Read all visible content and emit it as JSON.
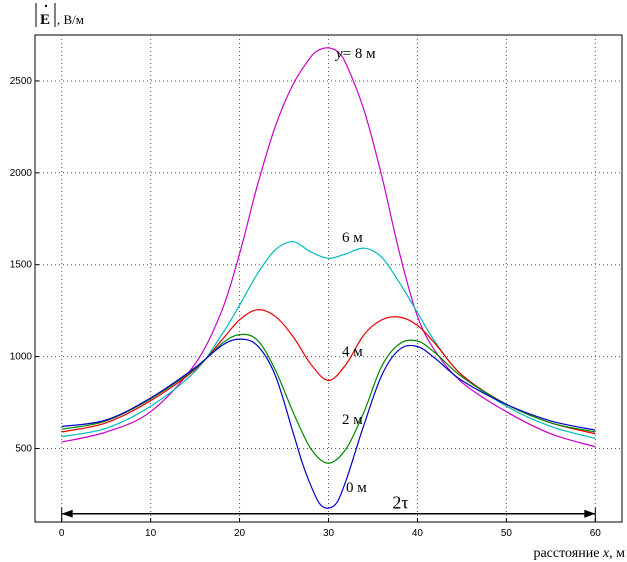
{
  "chart_data": {
    "type": "line",
    "ylabel": {
      "symbol": "E",
      "unit": ", В/м"
    },
    "xlabel": {
      "prefix": "расстояние ",
      "var": "x",
      "suffix": ", м"
    },
    "xlim": [
      -3,
      63
    ],
    "ylim": [
      100,
      2750
    ],
    "x_ticks": [
      0,
      10,
      20,
      30,
      40,
      50,
      60
    ],
    "y_ticks": [
      500,
      1000,
      1500,
      2000,
      2500
    ],
    "grid": true,
    "series": [
      {
        "name": "y= 8 м",
        "color": "#cc00cc",
        "x": [
          0,
          5,
          10,
          15,
          18,
          20,
          22,
          24,
          26,
          28,
          29,
          30,
          31,
          32,
          34,
          36,
          38,
          40,
          42,
          45,
          50,
          55,
          60
        ],
        "y": [
          535,
          590,
          700,
          960,
          1250,
          1560,
          1930,
          2250,
          2480,
          2630,
          2670,
          2680,
          2660,
          2590,
          2340,
          1980,
          1560,
          1220,
          1030,
          860,
          700,
          580,
          510
        ]
      },
      {
        "name": "6 м",
        "color": "#00bbbb",
        "x": [
          0,
          5,
          10,
          15,
          18,
          20,
          22,
          24,
          26,
          28,
          30,
          32,
          34,
          36,
          38,
          40,
          42,
          45,
          50,
          55,
          60
        ],
        "y": [
          565,
          610,
          730,
          920,
          1120,
          1280,
          1450,
          1580,
          1625,
          1570,
          1535,
          1560,
          1590,
          1540,
          1400,
          1240,
          1080,
          900,
          730,
          620,
          555
        ]
      },
      {
        "name": "4 м",
        "color": "#ee0000",
        "x": [
          0,
          5,
          10,
          15,
          18,
          20,
          22,
          24,
          26,
          28,
          30,
          32,
          34,
          36,
          38,
          40,
          42,
          45,
          50,
          55,
          60
        ],
        "y": [
          590,
          640,
          760,
          930,
          1090,
          1200,
          1255,
          1220,
          1110,
          960,
          870,
          960,
          1120,
          1200,
          1215,
          1170,
          1070,
          900,
          740,
          640,
          580
        ]
      },
      {
        "name": "2 м",
        "color": "#008800",
        "x": [
          0,
          5,
          10,
          15,
          18,
          20,
          22,
          24,
          26,
          28,
          30,
          32,
          34,
          36,
          38,
          40,
          42,
          45,
          50,
          55,
          60
        ],
        "y": [
          605,
          650,
          770,
          935,
          1070,
          1120,
          1090,
          930,
          700,
          500,
          420,
          500,
          700,
          950,
          1070,
          1085,
          1020,
          890,
          740,
          640,
          590
        ]
      },
      {
        "name": "0 м",
        "color": "#0000cc",
        "x": [
          0,
          5,
          10,
          15,
          18,
          20,
          22,
          24,
          26,
          27,
          28,
          29,
          30,
          31,
          32,
          33,
          34,
          36,
          38,
          40,
          42,
          45,
          50,
          55,
          60
        ],
        "y": [
          620,
          655,
          775,
          940,
          1060,
          1095,
          1060,
          900,
          590,
          430,
          300,
          200,
          175,
          210,
          330,
          480,
          630,
          900,
          1040,
          1055,
          990,
          870,
          740,
          650,
          600
        ]
      }
    ],
    "annotation": {
      "label": "2τ",
      "from": 0,
      "to": 60,
      "y": 145
    }
  }
}
